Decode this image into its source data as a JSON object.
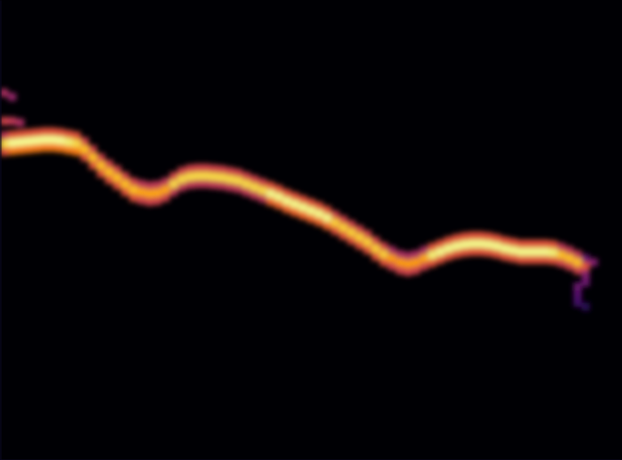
{
  "chart_data": {
    "type": "heatmap",
    "tick_labels": false,
    "xlim": [
      0,
      77
    ],
    "ylim": [
      0,
      57
    ],
    "xticks": [],
    "yticks": [],
    "zlim": [
      0,
      1
    ],
    "cell_width": 1,
    "cell_height": 1,
    "cells": [
      [
        0.5,
        45.5,
        0.45
      ],
      [
        1.5,
        45.0,
        0.4
      ],
      [
        0.5,
        42.0,
        0.55
      ],
      [
        1.5,
        42.0,
        0.5
      ],
      [
        2.5,
        41.8,
        0.45
      ],
      [
        0.5,
        40.2,
        0.5
      ],
      [
        0.5,
        39.2,
        0.9
      ],
      [
        0.5,
        38.2,
        0.6
      ],
      [
        1.5,
        40.3,
        0.6
      ],
      [
        1.5,
        39.3,
        0.98
      ],
      [
        1.5,
        38.3,
        0.7
      ],
      [
        2.5,
        40.4,
        0.6
      ],
      [
        2.5,
        39.4,
        0.98
      ],
      [
        2.5,
        38.4,
        0.7
      ],
      [
        3.5,
        40.5,
        0.6
      ],
      [
        3.5,
        39.5,
        0.98
      ],
      [
        3.5,
        38.5,
        0.7
      ],
      [
        4.5,
        40.6,
        0.6
      ],
      [
        4.5,
        39.6,
        0.98
      ],
      [
        4.5,
        38.6,
        0.7
      ],
      [
        5.5,
        40.7,
        0.6
      ],
      [
        5.5,
        39.7,
        0.98
      ],
      [
        5.5,
        38.7,
        0.7
      ],
      [
        6.5,
        40.7,
        0.6
      ],
      [
        6.5,
        39.7,
        0.98
      ],
      [
        6.5,
        38.7,
        0.7
      ],
      [
        7.5,
        40.6,
        0.6
      ],
      [
        7.5,
        39.6,
        0.98
      ],
      [
        7.5,
        38.6,
        0.7
      ],
      [
        8.5,
        40.4,
        0.6
      ],
      [
        8.5,
        39.4,
        0.95
      ],
      [
        8.5,
        38.4,
        0.7
      ],
      [
        9.5,
        40.2,
        0.6
      ],
      [
        9.5,
        39.2,
        0.9
      ],
      [
        9.5,
        38.2,
        0.7
      ],
      [
        10.5,
        39.5,
        0.55
      ],
      [
        10.5,
        38.5,
        0.85
      ],
      [
        10.5,
        37.5,
        0.6
      ],
      [
        11.5,
        38.5,
        0.55
      ],
      [
        11.5,
        37.5,
        0.85
      ],
      [
        11.5,
        36.5,
        0.6
      ],
      [
        12.5,
        37.5,
        0.55
      ],
      [
        12.5,
        36.5,
        0.85
      ],
      [
        12.5,
        35.5,
        0.6
      ],
      [
        13.5,
        36.7,
        0.55
      ],
      [
        13.5,
        35.7,
        0.85
      ],
      [
        13.5,
        34.7,
        0.6
      ],
      [
        14.5,
        36.0,
        0.55
      ],
      [
        14.5,
        35.0,
        0.85
      ],
      [
        14.5,
        34.0,
        0.6
      ],
      [
        15.5,
        35.2,
        0.55
      ],
      [
        15.5,
        34.2,
        0.85
      ],
      [
        15.5,
        33.2,
        0.6
      ],
      [
        16.5,
        34.5,
        0.55
      ],
      [
        16.5,
        33.5,
        0.85
      ],
      [
        16.5,
        32.5,
        0.6
      ],
      [
        17.5,
        34.2,
        0.5
      ],
      [
        17.5,
        33.2,
        0.8
      ],
      [
        17.5,
        32.2,
        0.55
      ],
      [
        18.5,
        34.0,
        0.5
      ],
      [
        18.5,
        33.0,
        0.8
      ],
      [
        18.5,
        32.0,
        0.55
      ],
      [
        19.5,
        34.1,
        0.5
      ],
      [
        19.5,
        33.1,
        0.8
      ],
      [
        19.5,
        32.1,
        0.55
      ],
      [
        20.5,
        34.5,
        0.5
      ],
      [
        20.5,
        33.5,
        0.8
      ],
      [
        20.5,
        32.5,
        0.55
      ],
      [
        21.5,
        35.2,
        0.55
      ],
      [
        21.5,
        34.2,
        0.9
      ],
      [
        21.5,
        33.2,
        0.5
      ],
      [
        22.5,
        35.8,
        0.55
      ],
      [
        22.5,
        34.8,
        0.9
      ],
      [
        22.5,
        33.8,
        0.5
      ],
      [
        23.5,
        36.1,
        0.55
      ],
      [
        23.5,
        35.1,
        0.9
      ],
      [
        23.5,
        34.1,
        0.5
      ],
      [
        24.5,
        36.2,
        0.55
      ],
      [
        24.5,
        35.2,
        0.9
      ],
      [
        24.5,
        34.2,
        0.5
      ],
      [
        25.5,
        36.2,
        0.55
      ],
      [
        25.5,
        35.2,
        0.9
      ],
      [
        25.5,
        34.2,
        0.5
      ],
      [
        26.5,
        36.1,
        0.55
      ],
      [
        26.5,
        35.1,
        0.9
      ],
      [
        26.5,
        34.1,
        0.5
      ],
      [
        27.5,
        36.0,
        0.55
      ],
      [
        27.5,
        35.0,
        0.9
      ],
      [
        27.5,
        34.0,
        0.5
      ],
      [
        28.5,
        35.8,
        0.55
      ],
      [
        28.5,
        34.8,
        0.9
      ],
      [
        28.5,
        33.8,
        0.5
      ],
      [
        29.5,
        35.6,
        0.55
      ],
      [
        29.5,
        34.6,
        0.9
      ],
      [
        29.5,
        33.6,
        0.5
      ],
      [
        30.5,
        35.2,
        0.55
      ],
      [
        30.5,
        34.2,
        0.9
      ],
      [
        30.5,
        33.2,
        0.5
      ],
      [
        31.5,
        34.8,
        0.55
      ],
      [
        31.5,
        33.8,
        0.9
      ],
      [
        31.5,
        32.8,
        0.5
      ],
      [
        32.5,
        34.4,
        0.55
      ],
      [
        32.5,
        33.4,
        0.9
      ],
      [
        32.5,
        32.4,
        0.5
      ],
      [
        33.5,
        34.0,
        0.6
      ],
      [
        33.5,
        33.0,
        0.97
      ],
      [
        33.5,
        32.0,
        0.65
      ],
      [
        34.5,
        33.6,
        0.6
      ],
      [
        34.5,
        32.6,
        0.97
      ],
      [
        34.5,
        31.6,
        0.65
      ],
      [
        35.5,
        33.1,
        0.6
      ],
      [
        35.5,
        32.1,
        0.97
      ],
      [
        35.5,
        31.1,
        0.65
      ],
      [
        36.5,
        32.7,
        0.6
      ],
      [
        36.5,
        31.7,
        0.97
      ],
      [
        36.5,
        30.7,
        0.65
      ],
      [
        37.5,
        32.3,
        0.6
      ],
      [
        37.5,
        31.3,
        0.97
      ],
      [
        37.5,
        30.3,
        0.65
      ],
      [
        38.5,
        31.9,
        0.6
      ],
      [
        38.5,
        30.9,
        0.97
      ],
      [
        38.5,
        29.9,
        0.65
      ],
      [
        39.5,
        31.5,
        0.6
      ],
      [
        39.5,
        30.5,
        0.97
      ],
      [
        39.5,
        29.5,
        0.65
      ],
      [
        40.5,
        31.0,
        0.6
      ],
      [
        40.5,
        30.0,
        0.97
      ],
      [
        40.5,
        29.0,
        0.65
      ],
      [
        41.5,
        30.4,
        0.55
      ],
      [
        41.5,
        29.4,
        0.88
      ],
      [
        41.5,
        28.4,
        0.6
      ],
      [
        42.5,
        29.8,
        0.55
      ],
      [
        42.5,
        28.8,
        0.88
      ],
      [
        42.5,
        27.8,
        0.6
      ],
      [
        43.5,
        29.2,
        0.55
      ],
      [
        43.5,
        28.2,
        0.88
      ],
      [
        43.5,
        27.2,
        0.6
      ],
      [
        44.5,
        28.6,
        0.55
      ],
      [
        44.5,
        27.6,
        0.88
      ],
      [
        44.5,
        26.6,
        0.6
      ],
      [
        45.5,
        28.0,
        0.55
      ],
      [
        45.5,
        27.0,
        0.88
      ],
      [
        45.5,
        26.0,
        0.6
      ],
      [
        46.5,
        27.2,
        0.55
      ],
      [
        46.5,
        26.2,
        0.88
      ],
      [
        46.5,
        25.2,
        0.6
      ],
      [
        47.5,
        26.5,
        0.55
      ],
      [
        47.5,
        25.5,
        0.88
      ],
      [
        47.5,
        24.5,
        0.6
      ],
      [
        48.5,
        26.0,
        0.45
      ],
      [
        48.5,
        25.0,
        0.78
      ],
      [
        48.5,
        24.0,
        0.55
      ],
      [
        49.5,
        25.5,
        0.45
      ],
      [
        49.5,
        24.5,
        0.78
      ],
      [
        49.5,
        23.5,
        0.55
      ],
      [
        50.5,
        25.3,
        0.45
      ],
      [
        50.5,
        24.3,
        0.78
      ],
      [
        50.5,
        23.3,
        0.55
      ],
      [
        51.5,
        25.5,
        0.45
      ],
      [
        51.5,
        24.5,
        0.78
      ],
      [
        51.5,
        23.5,
        0.55
      ],
      [
        52.5,
        26.0,
        0.45
      ],
      [
        52.5,
        25.0,
        0.8
      ],
      [
        52.5,
        24.0,
        0.55
      ],
      [
        53.5,
        26.4,
        0.6
      ],
      [
        53.5,
        25.4,
        0.95
      ],
      [
        53.5,
        24.4,
        0.6
      ],
      [
        54.5,
        26.8,
        0.6
      ],
      [
        54.5,
        25.8,
        0.97
      ],
      [
        54.5,
        24.8,
        0.6
      ],
      [
        55.5,
        27.2,
        0.6
      ],
      [
        55.5,
        26.2,
        0.97
      ],
      [
        55.5,
        25.2,
        0.6
      ],
      [
        56.5,
        27.5,
        0.6
      ],
      [
        56.5,
        26.5,
        0.97
      ],
      [
        56.5,
        25.5,
        0.6
      ],
      [
        57.5,
        27.7,
        0.6
      ],
      [
        57.5,
        26.7,
        0.97
      ],
      [
        57.5,
        25.7,
        0.6
      ],
      [
        58.5,
        27.8,
        0.6
      ],
      [
        58.5,
        26.8,
        0.97
      ],
      [
        58.5,
        25.8,
        0.6
      ],
      [
        59.5,
        27.8,
        0.6
      ],
      [
        59.5,
        26.8,
        0.97
      ],
      [
        59.5,
        25.8,
        0.6
      ],
      [
        60.5,
        27.7,
        0.6
      ],
      [
        60.5,
        26.7,
        0.97
      ],
      [
        60.5,
        25.7,
        0.6
      ],
      [
        61.5,
        27.5,
        0.6
      ],
      [
        61.5,
        26.5,
        0.97
      ],
      [
        61.5,
        25.5,
        0.6
      ],
      [
        62.5,
        27.2,
        0.6
      ],
      [
        62.5,
        26.2,
        0.97
      ],
      [
        62.5,
        25.2,
        0.6
      ],
      [
        63.5,
        27.0,
        0.6
      ],
      [
        63.5,
        26.0,
        0.97
      ],
      [
        63.5,
        25.0,
        0.6
      ],
      [
        64.5,
        26.8,
        0.6
      ],
      [
        64.5,
        25.8,
        0.97
      ],
      [
        64.5,
        24.8,
        0.6
      ],
      [
        65.5,
        26.8,
        0.6
      ],
      [
        65.5,
        25.8,
        0.97
      ],
      [
        65.5,
        24.8,
        0.6
      ],
      [
        66.5,
        26.8,
        0.6
      ],
      [
        66.5,
        25.8,
        0.97
      ],
      [
        66.5,
        24.8,
        0.6
      ],
      [
        67.5,
        26.8,
        0.6
      ],
      [
        67.5,
        25.8,
        0.97
      ],
      [
        67.5,
        24.8,
        0.6
      ],
      [
        68.5,
        26.7,
        0.6
      ],
      [
        68.5,
        25.7,
        0.95
      ],
      [
        68.5,
        24.7,
        0.6
      ],
      [
        69.5,
        26.4,
        0.5
      ],
      [
        69.5,
        25.4,
        0.85
      ],
      [
        69.5,
        24.4,
        0.55
      ],
      [
        70.5,
        26.0,
        0.5
      ],
      [
        70.5,
        25.0,
        0.85
      ],
      [
        70.5,
        24.0,
        0.55
      ],
      [
        71.5,
        25.5,
        0.5
      ],
      [
        71.5,
        24.5,
        0.85
      ],
      [
        71.5,
        23.5,
        0.55
      ],
      [
        72.5,
        25.0,
        0.3
      ],
      [
        72.5,
        24.0,
        0.6
      ],
      [
        72.5,
        23.0,
        0.35
      ],
      [
        71.5,
        21.5,
        0.3
      ],
      [
        71.5,
        20.5,
        0.25
      ],
      [
        71.5,
        19.5,
        0.2
      ],
      [
        72.5,
        22.0,
        0.3
      ],
      [
        72.5,
        19.0,
        0.15
      ],
      [
        73.5,
        24.5,
        0.35
      ]
    ]
  }
}
